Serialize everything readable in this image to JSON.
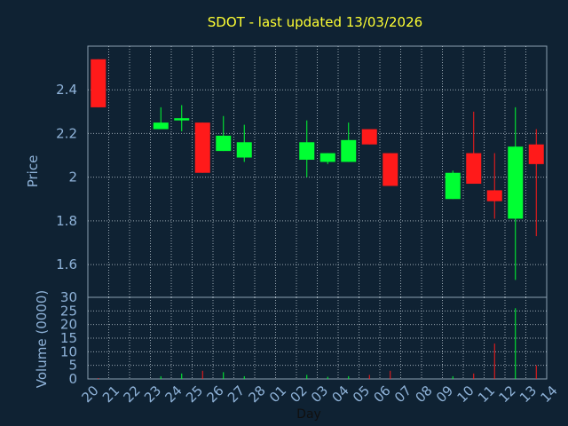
{
  "chart_data": {
    "type": "candlestick",
    "title": "SDOT - last updated 13/03/2026",
    "xlabel": "Day",
    "price_ylabel": "Price",
    "volume_ylabel": "Volume (0000)",
    "x_ticks": [
      "20",
      "21",
      "22",
      "23",
      "24",
      "25",
      "26",
      "27",
      "28",
      "01",
      "02",
      "03",
      "04",
      "05",
      "06",
      "07",
      "08",
      "09",
      "10",
      "11",
      "12",
      "13",
      "14"
    ],
    "price_ylim": [
      1.45,
      2.6
    ],
    "price_ticks": [
      1.6,
      1.8,
      2,
      2.2,
      2.4
    ],
    "volume_ylim": [
      0,
      30
    ],
    "volume_ticks": [
      0,
      5,
      10,
      15,
      20,
      25,
      30
    ],
    "grid": true,
    "up_color": "#00ff33",
    "down_color": "#ff1a1a",
    "candles": [
      {
        "x": 0,
        "open": 2.54,
        "high": 2.54,
        "low": 2.32,
        "close": 2.32,
        "volume": 0.3
      },
      {
        "x": 3,
        "open": 2.22,
        "high": 2.32,
        "low": 2.22,
        "close": 2.25,
        "volume": 1.0
      },
      {
        "x": 4,
        "open": 2.26,
        "high": 2.33,
        "low": 2.21,
        "close": 2.27,
        "volume": 2.0
      },
      {
        "x": 5,
        "open": 2.25,
        "high": 2.25,
        "low": 2.02,
        "close": 2.02,
        "volume": 3.0
      },
      {
        "x": 6,
        "open": 2.12,
        "high": 2.28,
        "low": 2.12,
        "close": 2.19,
        "volume": 2.5
      },
      {
        "x": 7,
        "open": 2.09,
        "high": 2.24,
        "low": 2.07,
        "close": 2.16,
        "volume": 1.0
      },
      {
        "x": 10,
        "open": 2.08,
        "high": 2.26,
        "low": 2.0,
        "close": 2.16,
        "volume": 1.5
      },
      {
        "x": 11,
        "open": 2.07,
        "high": 2.11,
        "low": 2.06,
        "close": 2.11,
        "volume": 0.8
      },
      {
        "x": 12,
        "open": 2.07,
        "high": 2.25,
        "low": 2.07,
        "close": 2.17,
        "volume": 1.0
      },
      {
        "x": 13,
        "open": 2.22,
        "high": 2.22,
        "low": 2.15,
        "close": 2.15,
        "volume": 1.5
      },
      {
        "x": 14,
        "open": 2.11,
        "high": 2.11,
        "low": 1.96,
        "close": 1.96,
        "volume": 3.0
      },
      {
        "x": 17,
        "open": 1.9,
        "high": 2.03,
        "low": 1.9,
        "close": 2.02,
        "volume": 1.0
      },
      {
        "x": 18,
        "open": 2.11,
        "high": 2.3,
        "low": 1.97,
        "close": 1.97,
        "volume": 2.0
      },
      {
        "x": 19,
        "open": 1.94,
        "high": 2.11,
        "low": 1.81,
        "close": 1.89,
        "volume": 13.0
      },
      {
        "x": 20,
        "open": 1.81,
        "high": 2.32,
        "low": 1.53,
        "close": 2.14,
        "volume": 26.0
      },
      {
        "x": 21,
        "open": 2.15,
        "high": 2.22,
        "low": 1.73,
        "close": 2.06,
        "volume": 5.0
      }
    ]
  }
}
